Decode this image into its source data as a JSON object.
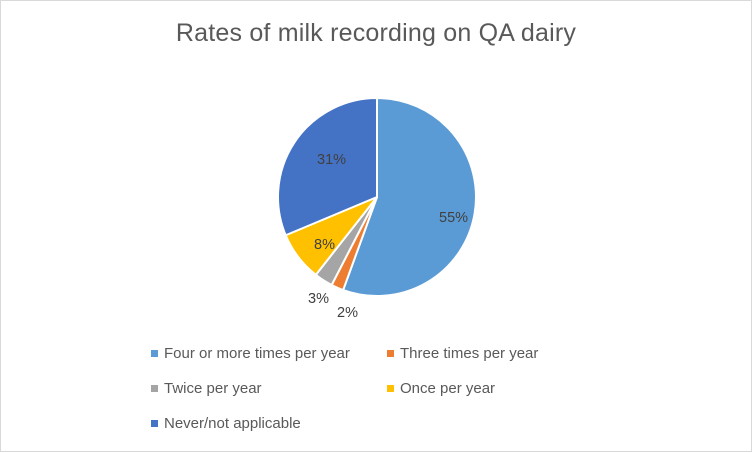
{
  "chart_data": {
    "type": "pie",
    "title": "Rates of milk recording on QA dairy",
    "categories": [
      "Four or more times per year",
      "Three times per year",
      "Twice per year",
      "Once per year",
      "Never/not applicable"
    ],
    "values": [
      55,
      2,
      3,
      8,
      31
    ],
    "data_labels": [
      "55%",
      "2%",
      "3%",
      "8%",
      "31%"
    ],
    "colors": [
      "#5b9bd5",
      "#ed7d31",
      "#a5a5a5",
      "#ffc000",
      "#4472c4"
    ],
    "legend_position": "bottom",
    "grid": false
  }
}
